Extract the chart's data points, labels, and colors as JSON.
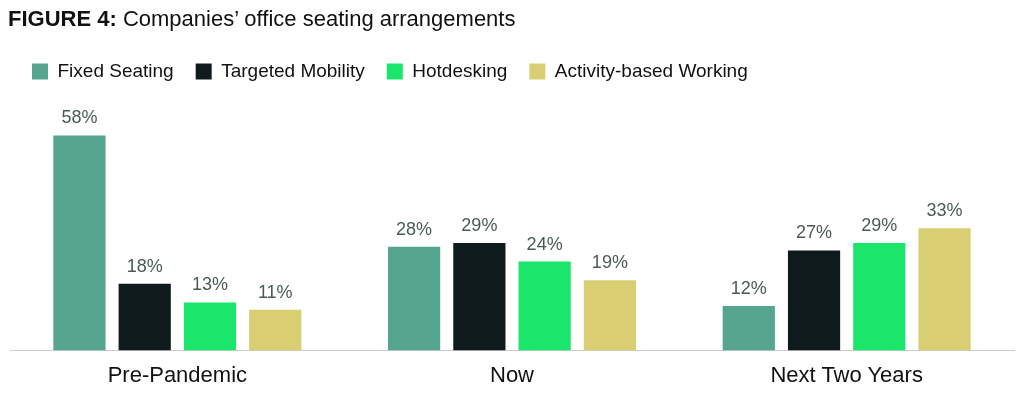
{
  "chart_data": {
    "type": "bar",
    "title": "FIGURE 4: Companies’ office seating arrangements",
    "categories": [
      "Pre-Pandemic",
      "Now",
      "Next Two Years"
    ],
    "series": [
      {
        "name": "Fixed Seating",
        "color": "#55a58f",
        "values": [
          58,
          28,
          12
        ],
        "value_labels": [
          "58%",
          "28%",
          "12%"
        ]
      },
      {
        "name": "Targeted Mobility",
        "color": "#0f1a1c",
        "values": [
          18,
          29,
          27
        ],
        "value_labels": [
          "18%",
          "29%",
          "27%"
        ]
      },
      {
        "name": "Hotdesking",
        "color": "#19e66b",
        "values": [
          13,
          24,
          29
        ],
        "value_labels": [
          "13%",
          "24%",
          "29%"
        ]
      },
      {
        "name": "Activity-based Working",
        "color": "#d9cf72",
        "values": [
          11,
          19,
          33
        ],
        "value_labels": [
          "11%",
          "19%",
          "33%"
        ]
      }
    ],
    "legend": "top left"
  }
}
